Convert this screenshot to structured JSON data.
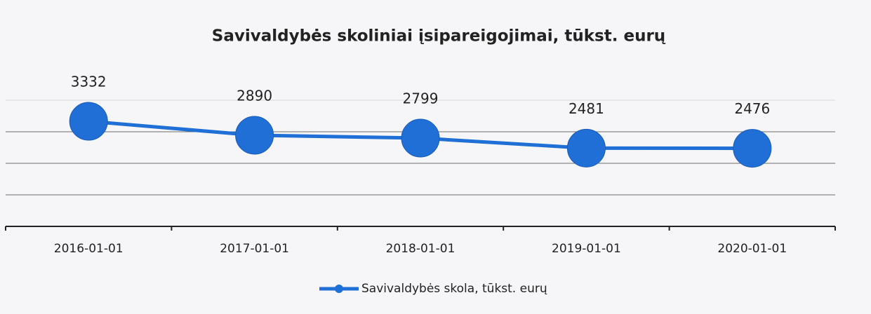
{
  "chart_data": {
    "type": "line",
    "title": "Savivaldybės skoliniai įsipareigojimai, tūkst. eurų",
    "categories": [
      "2016-01-01",
      "2017-01-01",
      "2018-01-01",
      "2019-01-01",
      "2020-01-01"
    ],
    "series": [
      {
        "name": "Savivaldybės skola, tūkst. eurų",
        "color": "#1f6fd6",
        "values": [
          3332,
          2890,
          2799,
          2481,
          2476
        ]
      }
    ],
    "ylim": [
      0,
      4000
    ],
    "yticks": [
      0,
      1000,
      2000,
      3000,
      4000
    ],
    "grid": true,
    "legend": "bottom"
  }
}
